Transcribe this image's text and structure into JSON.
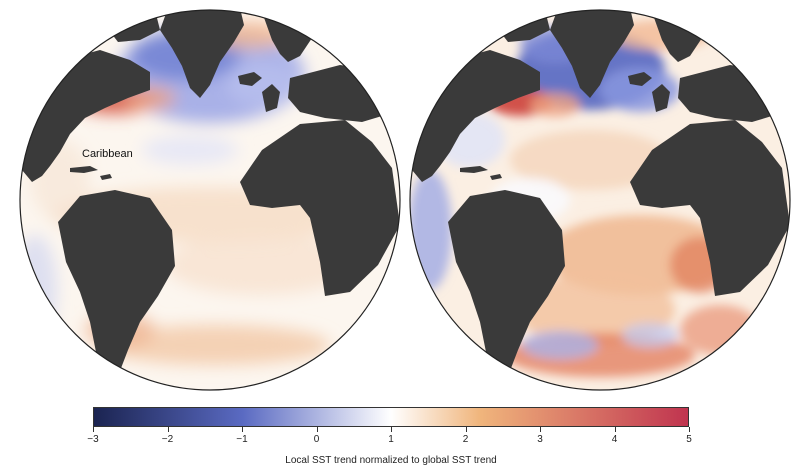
{
  "globes": [
    {
      "name": "left-globe",
      "annotation": "Caribbean"
    },
    {
      "name": "right-globe"
    }
  ],
  "colorbar": {
    "label": "Local SST trend normalized to global SST trend",
    "ticks": [
      "−3",
      "−2",
      "−1",
      "0",
      "1",
      "2",
      "3",
      "4",
      "5"
    ],
    "min": -3,
    "max": 5,
    "colors": {
      "min": "#1b2451",
      "low": "#5a6ac2",
      "mid": "#ffffff",
      "high": "#f0b57c",
      "max": "#c0344f"
    }
  },
  "colors": {
    "land": "#3a3a3a",
    "ocean_neutral": "#fcf5ee",
    "warm": "#f2c3a0",
    "hot": "#d9533f",
    "cool": "#8896df",
    "cold": "#5b6ac4"
  }
}
